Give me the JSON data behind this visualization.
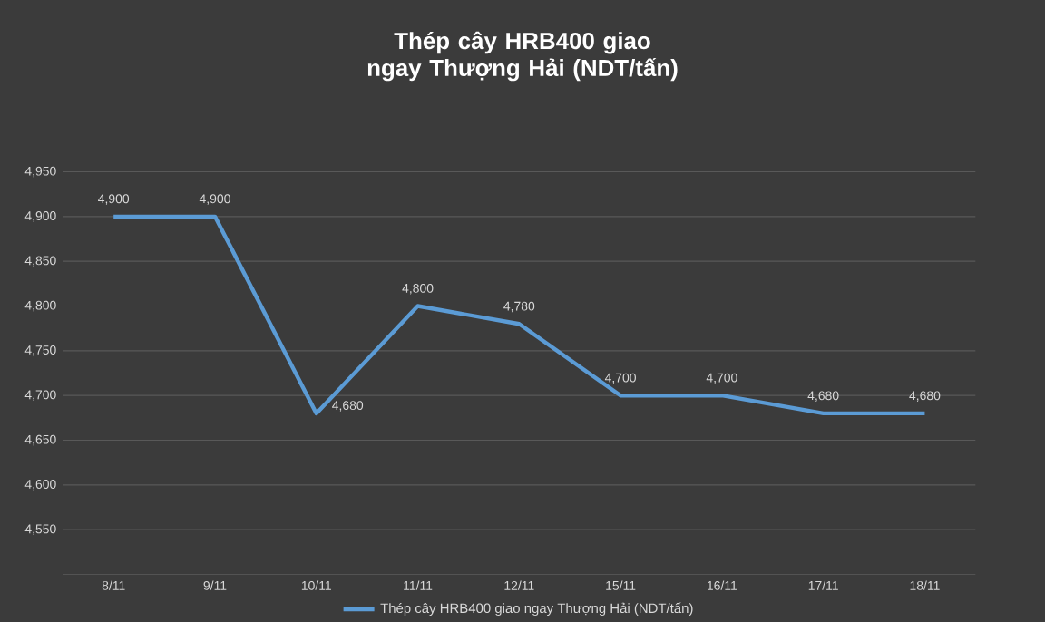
{
  "chart_data": {
    "type": "line",
    "title": "Thép cây HRB400 giao ngay Thượng Hải (NDT/tấn)",
    "categories": [
      "8/11",
      "9/11",
      "10/11",
      "11/11",
      "12/11",
      "15/11",
      "16/11",
      "17/11",
      "18/11"
    ],
    "series": [
      {
        "name": "Thép cây HRB400 giao ngay Thượng Hải (NDT/tấn)",
        "color": "#5b9bd5",
        "values": [
          4900,
          4900,
          4680,
          4800,
          4780,
          4700,
          4700,
          4680,
          4680
        ],
        "value_labels": [
          "4,900",
          "4,900",
          "4,680",
          "4,800",
          "4,780",
          "4,700",
          "4,700",
          "4,680",
          "4,680"
        ]
      }
    ],
    "ylim": [
      4500,
      4950
    ],
    "yticks": [
      {
        "value": 4550,
        "label": "4,550"
      },
      {
        "value": 4600,
        "label": "4,600"
      },
      {
        "value": 4650,
        "label": "4,650"
      },
      {
        "value": 4700,
        "label": "4,700"
      },
      {
        "value": 4750,
        "label": "4,750"
      },
      {
        "value": 4800,
        "label": "4,800"
      },
      {
        "value": 4850,
        "label": "4,850"
      },
      {
        "value": 4900,
        "label": "4,900"
      },
      {
        "value": 4950,
        "label": "4,950"
      }
    ],
    "grid": "y",
    "legend": "bottom"
  }
}
